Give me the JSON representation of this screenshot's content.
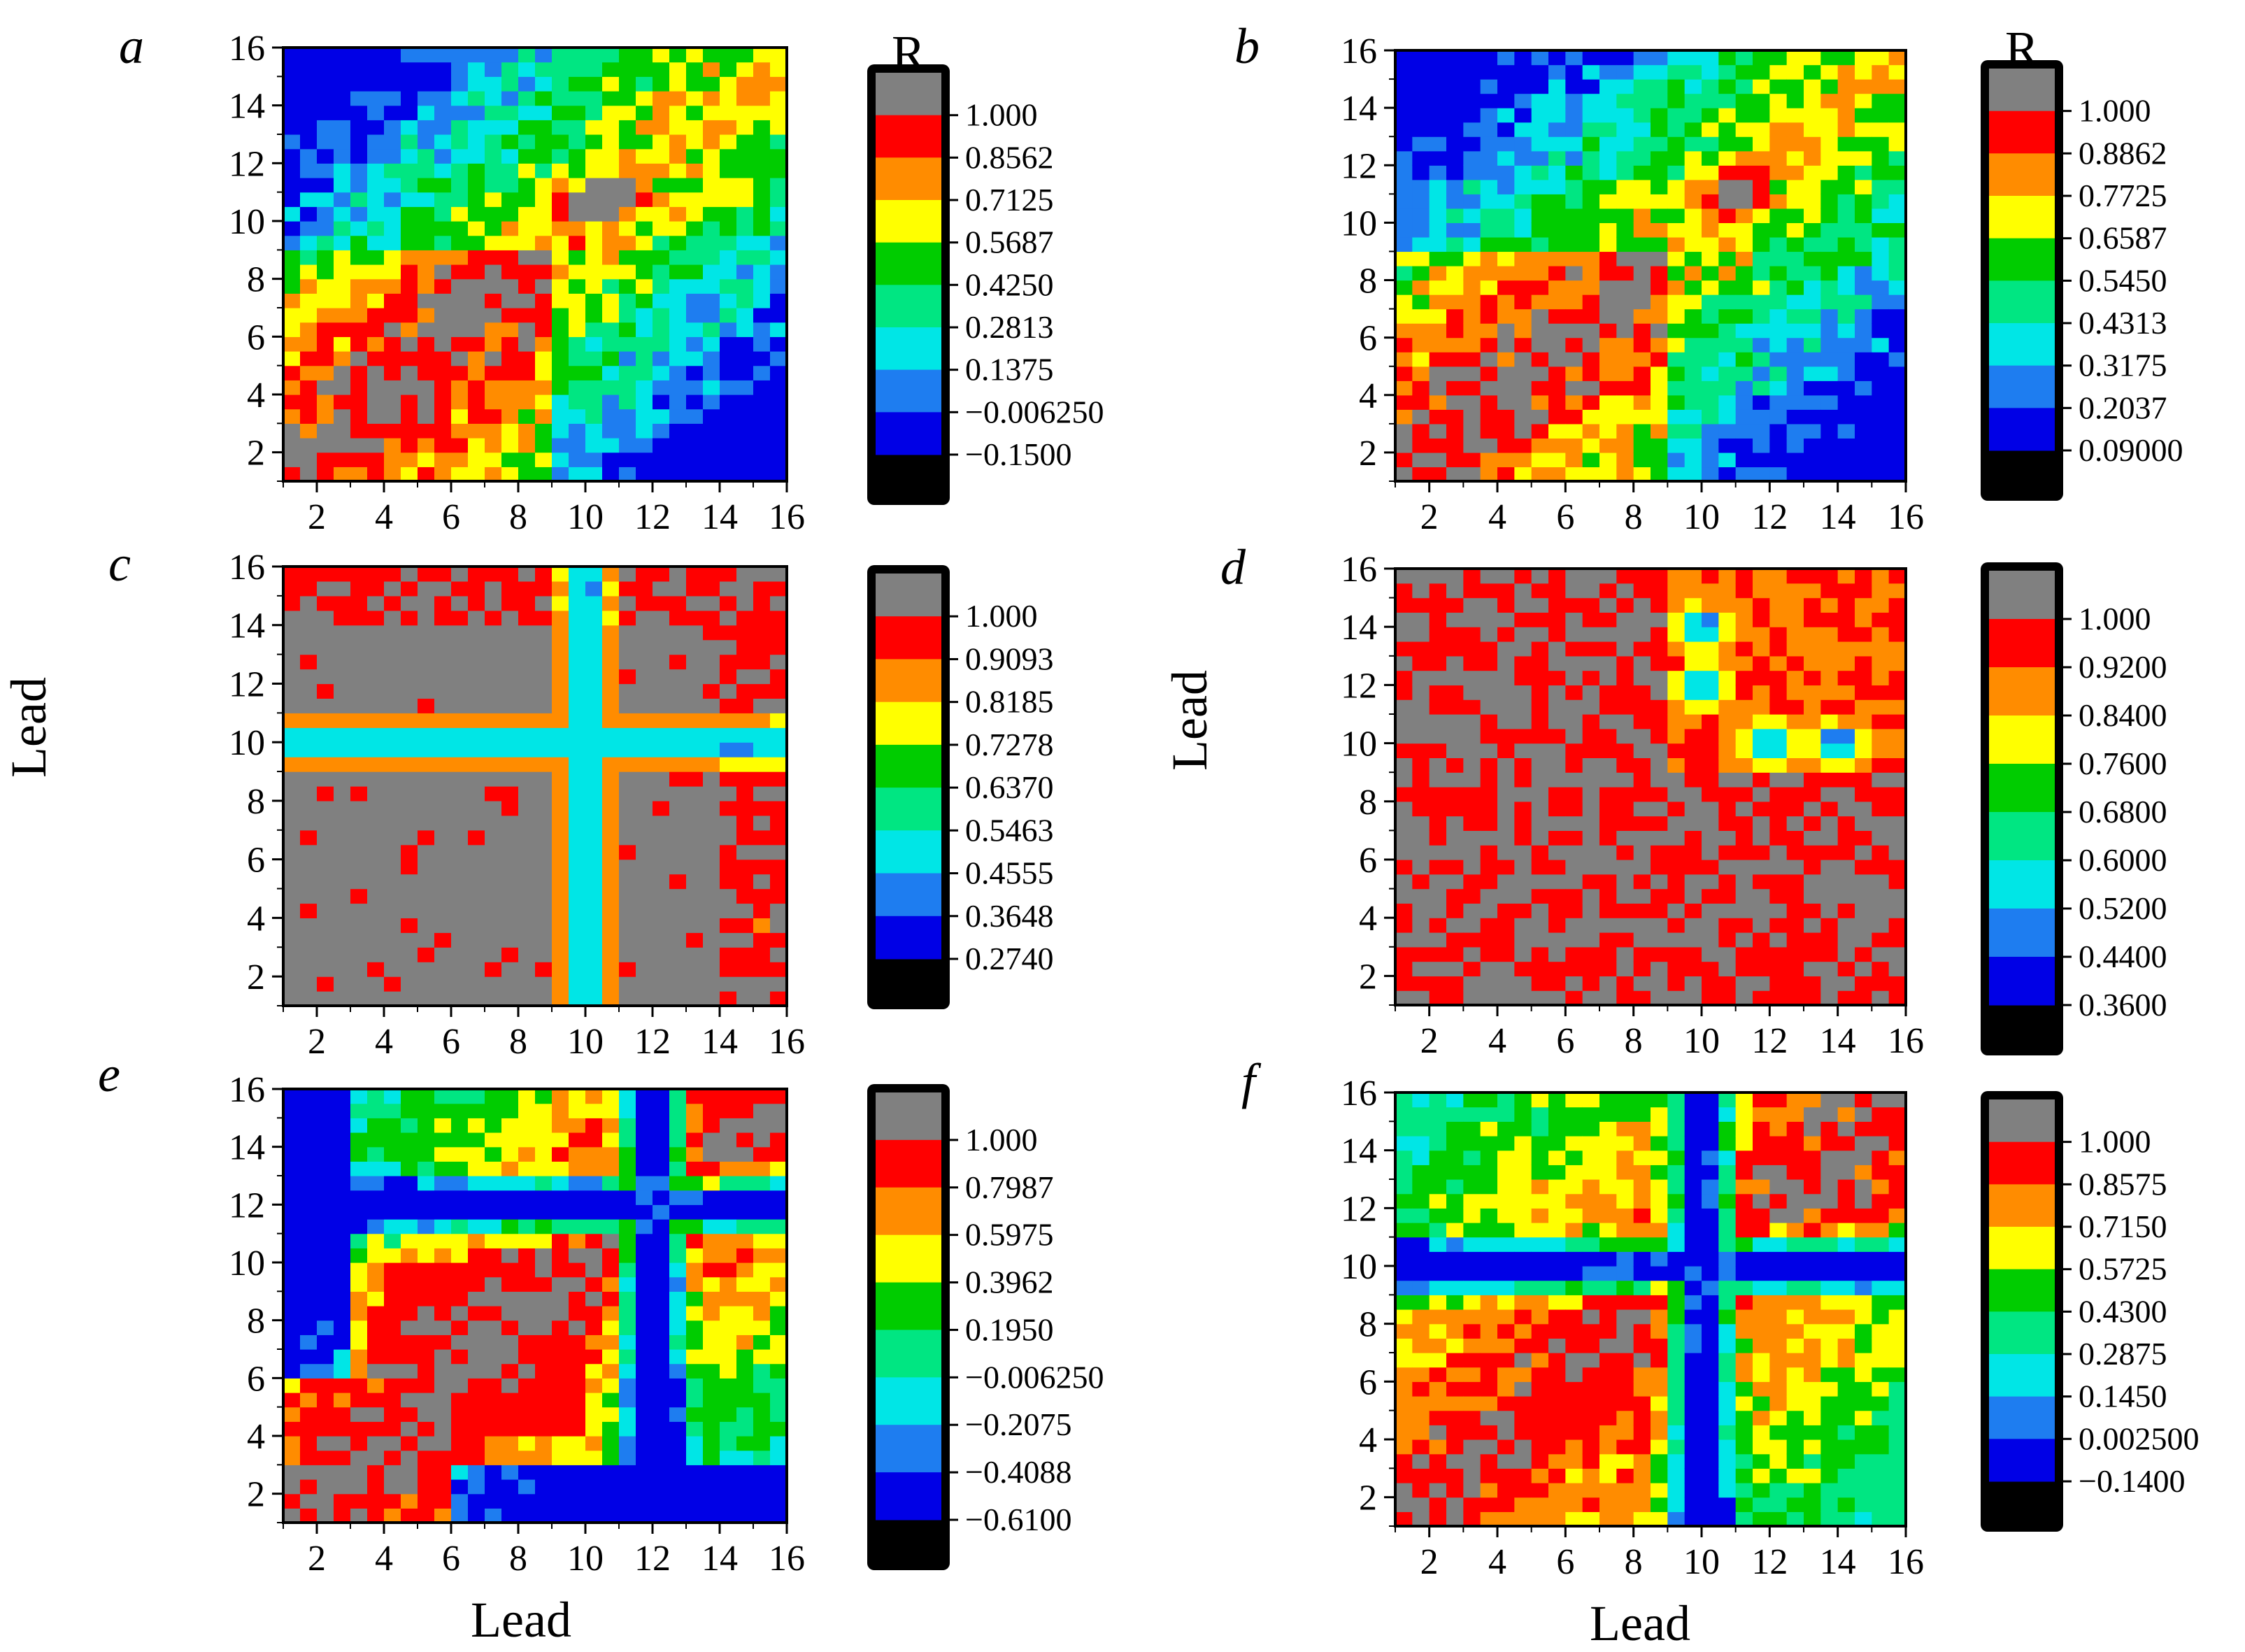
{
  "chart_data": {
    "type": "heatmap",
    "shared_axes": {
      "xlabel": "Lead",
      "ylabel": "Lead",
      "x_ticks": [
        "2",
        "4",
        "6",
        "8",
        "10",
        "12",
        "14",
        "16"
      ],
      "y_ticks": [
        "2",
        "4",
        "6",
        "8",
        "10",
        "12",
        "14",
        "16"
      ],
      "xlim": [
        1,
        16
      ],
      "ylim": [
        1,
        16
      ]
    },
    "colorscale": [
      "#000000",
      "#0000e6",
      "#1e7df0",
      "#00e6e6",
      "#00e682",
      "#00cc00",
      "#ffff00",
      "#ff8c00",
      "#ff0000",
      "#808080"
    ],
    "panels": [
      {
        "label": "a",
        "colorbar_title": "R",
        "colorbar_levels": [
          "1.000",
          "0.8562",
          "0.7125",
          "0.5687",
          "0.4250",
          "0.2813",
          "0.1375",
          "−0.006250",
          "−0.1500"
        ],
        "pattern": "mixed",
        "highlights": [
          [
            10,
            10.5
          ],
          [
            11,
            11
          ]
        ]
      },
      {
        "label": "b",
        "colorbar_title": "R",
        "colorbar_levels": [
          "1.000",
          "0.8862",
          "0.7725",
          "0.6587",
          "0.5450",
          "0.4313",
          "0.3175",
          "0.2037",
          "0.09000"
        ],
        "pattern": "mixed",
        "highlights": [
          [
            11,
            11
          ]
        ]
      },
      {
        "label": "c",
        "colorbar_title": "",
        "colorbar_levels": [
          "1.000",
          "0.9093",
          "0.8185",
          "0.7278",
          "0.6370",
          "0.5463",
          "0.4555",
          "0.3648",
          "0.2740"
        ],
        "pattern": "cross_high",
        "highlights": []
      },
      {
        "label": "d",
        "colorbar_title": "",
        "colorbar_levels": [
          "1.000",
          "0.9200",
          "0.8400",
          "0.7600",
          "0.6800",
          "0.6000",
          "0.5200",
          "0.4400",
          "0.3600"
        ],
        "pattern": "spots_high",
        "highlights": [
          [
            12,
            10
          ],
          [
            14,
            10
          ],
          [
            10,
            12
          ],
          [
            10,
            14
          ]
        ]
      },
      {
        "label": "e",
        "colorbar_title": "",
        "colorbar_levels": [
          "1.000",
          "0.7987",
          "0.5975",
          "0.3962",
          "0.1950",
          "−0.006250",
          "−0.2075",
          "−0.4088",
          "−0.6100"
        ],
        "pattern": "cross_mid",
        "highlights": [
          [
            12,
            9.5
          ],
          [
            10,
            12
          ]
        ]
      },
      {
        "label": "f",
        "colorbar_title": "",
        "colorbar_levels": [
          "1.000",
          "0.8575",
          "0.7150",
          "0.5725",
          "0.4300",
          "0.2875",
          "0.1450",
          "0.002500",
          "−0.1400"
        ],
        "pattern": "cross_low",
        "highlights": [
          [
            10,
            11
          ],
          [
            12,
            10
          ]
        ]
      }
    ]
  }
}
